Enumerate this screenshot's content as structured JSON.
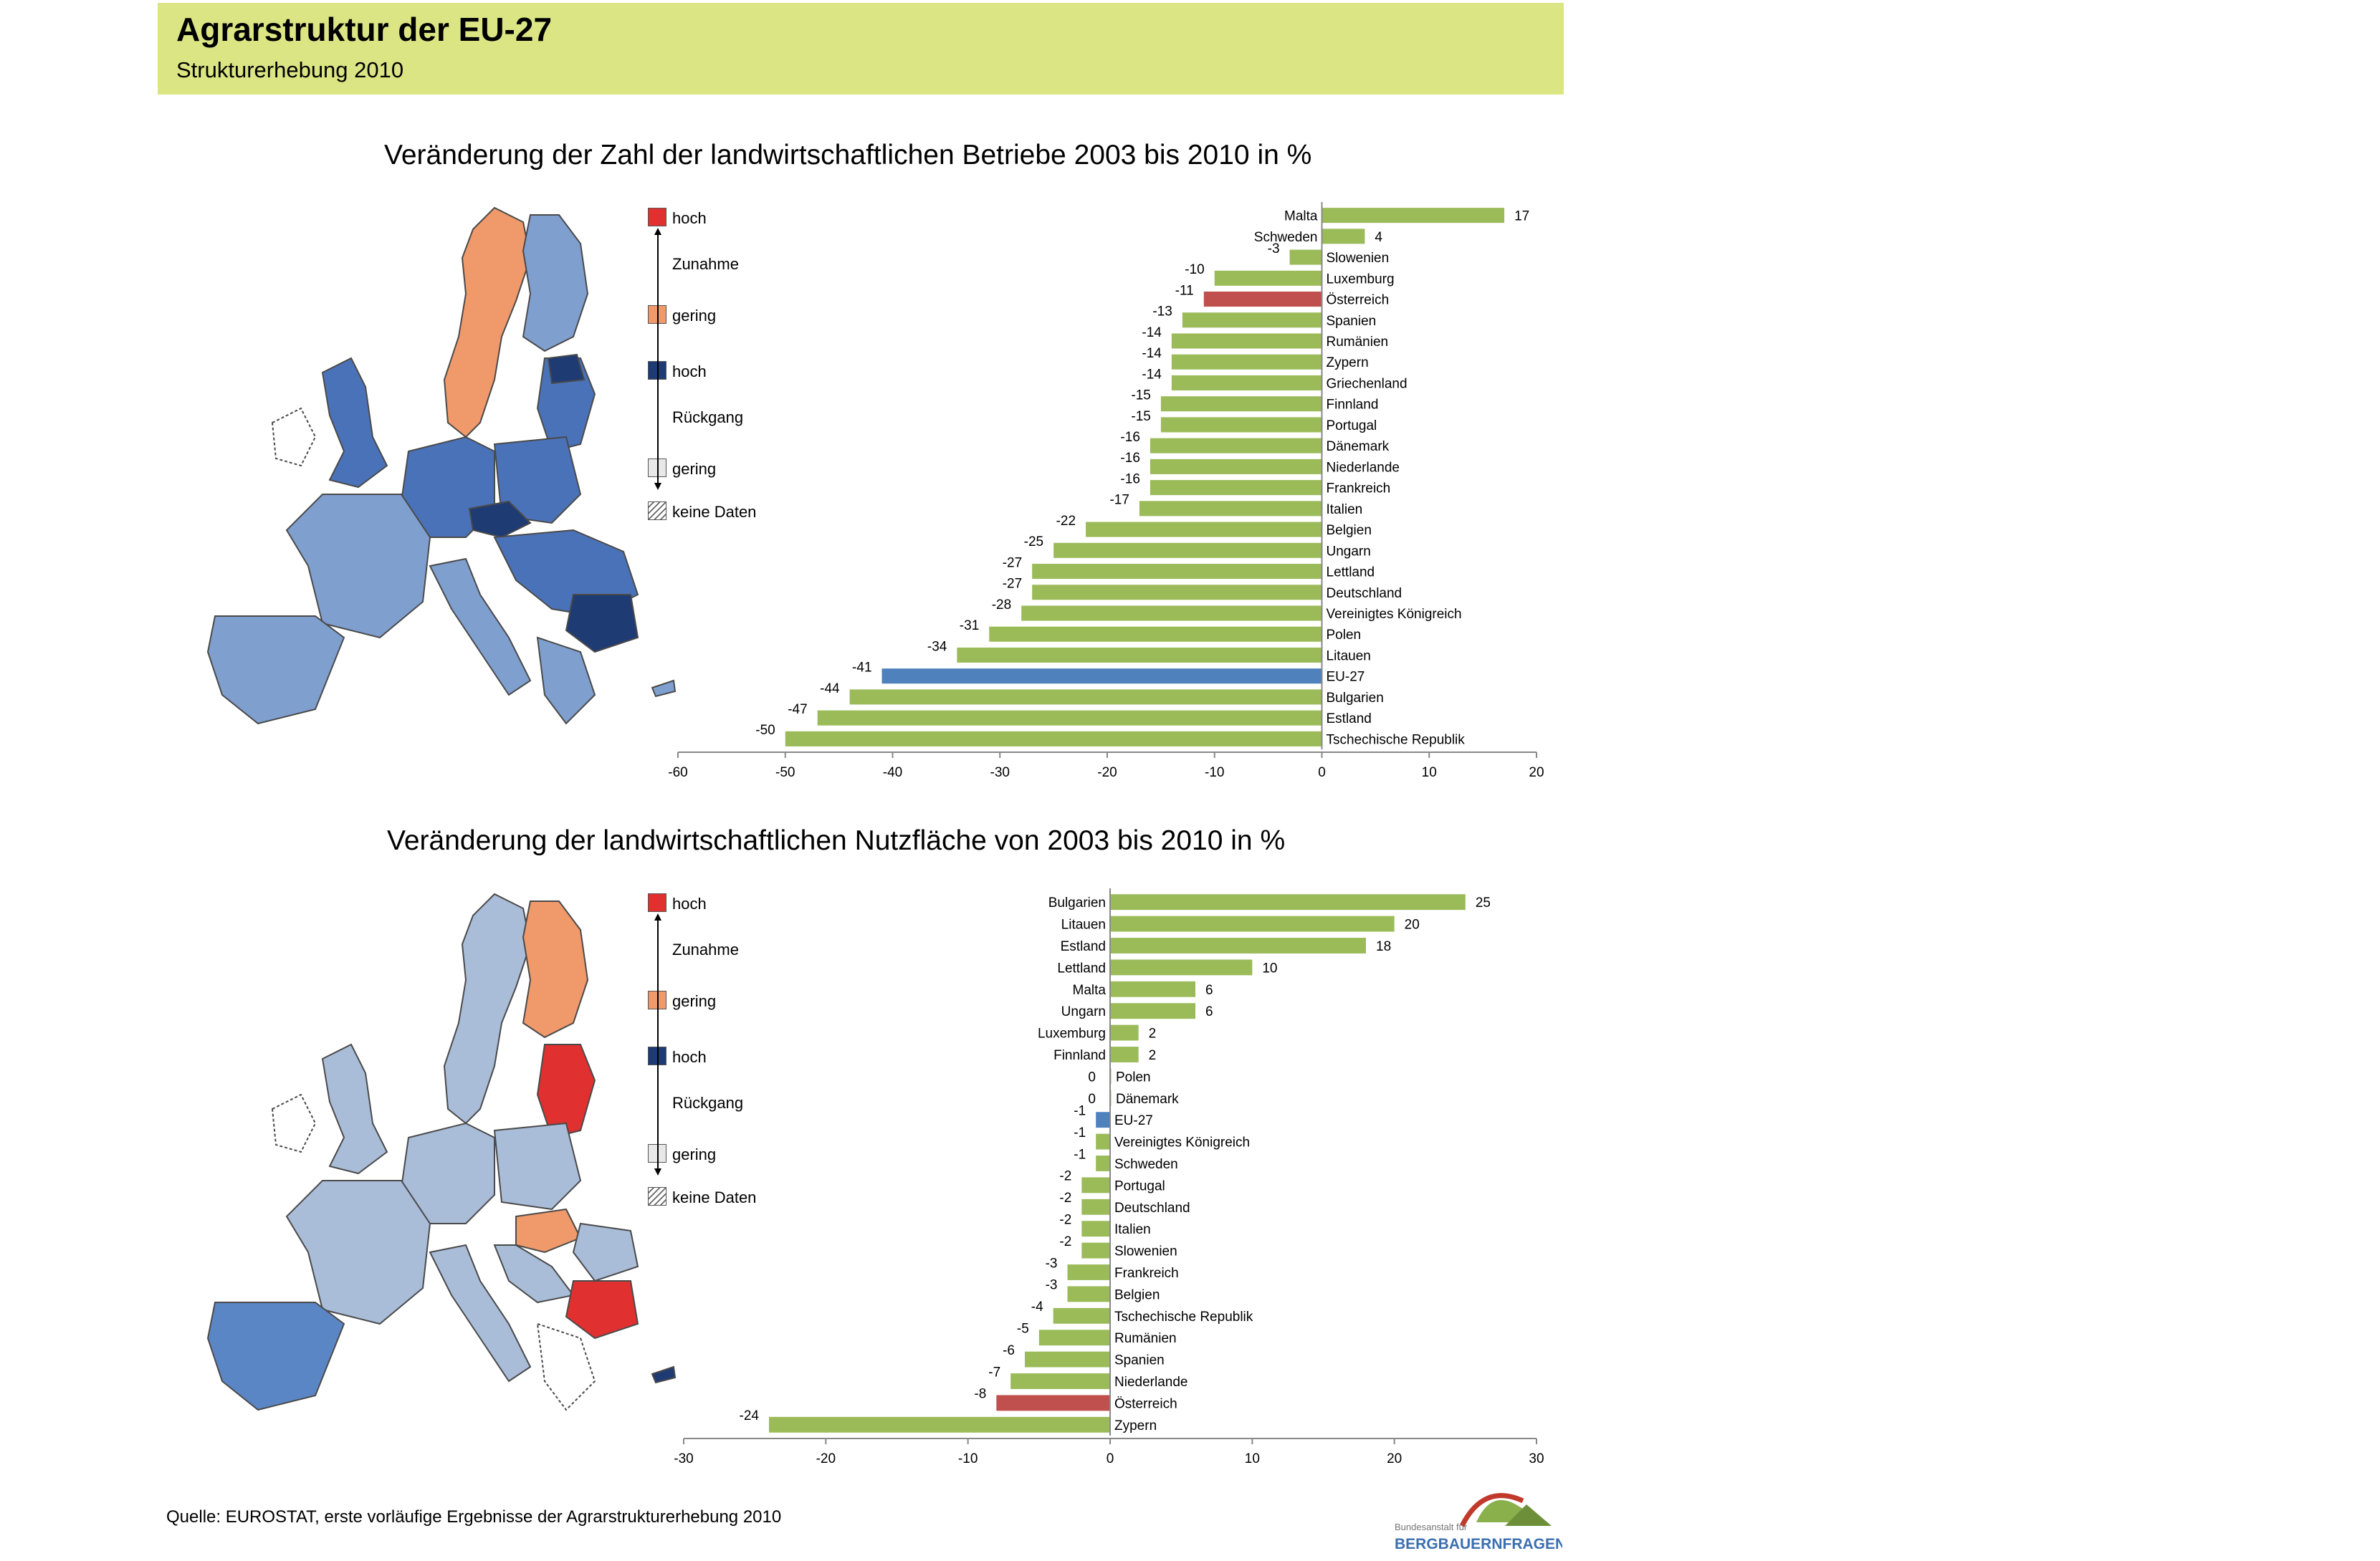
{
  "header": {
    "title": "Agrarstruktur der EU-27",
    "subtitle": "Strukturerhebung 2010"
  },
  "legend": {
    "hoch": "hoch",
    "zunahme": "Zunahme",
    "gering": "gering",
    "rueckgang": "Rückgang",
    "keine_daten": "keine Daten"
  },
  "colors": {
    "bar_green": "#9bbb59",
    "bar_red": "#c0504d",
    "bar_blue": "#4f81bd",
    "header_bg": "#dce584",
    "map_high_increase": "#e03030",
    "map_low_increase": "#f0996a",
    "map_high_decrease": "#1f3b73",
    "map_low_decrease": "#a9bcd8"
  },
  "source": "Quelle: EUROSTAT, erste vorläufige Ergebnisse der Agrarstrukturerhebung 2010",
  "logo": {
    "line1": "Bundesanstalt für",
    "line2": "BERGBAUERNFRAGEN"
  },
  "chart_data": [
    {
      "type": "bar",
      "orientation": "horizontal",
      "title": "Veränderung der Zahl der landwirtschaftlichen Betriebe 2003 bis 2010 in %",
      "xlim": [
        -60,
        20
      ],
      "xticks": [
        -60,
        -50,
        -40,
        -30,
        -20,
        -10,
        0,
        10,
        20
      ],
      "grid": false,
      "categories": [
        "Malta",
        "Schweden",
        "Slowenien",
        "Luxemburg",
        "Österreich",
        "Spanien",
        "Rumänien",
        "Zypern",
        "Griechenland",
        "Finnland",
        "Portugal",
        "Dänemark",
        "Niederlande",
        "Frankreich",
        "Italien",
        "Belgien",
        "Ungarn",
        "Lettland",
        "Deutschland",
        "Vereinigtes Königreich",
        "Polen",
        "Litauen",
        "EU-27",
        "Bulgarien",
        "Estland",
        "Tschechische Republik"
      ],
      "values": [
        17,
        4,
        -3,
        -10,
        -11,
        -13,
        -14,
        -14,
        -14,
        -15,
        -15,
        -16,
        -16,
        -16,
        -17,
        -22,
        -25,
        -27,
        -27,
        -28,
        -31,
        -34,
        -41,
        -44,
        -47,
        -50
      ],
      "highlight": {
        "Österreich": "red",
        "EU-27": "blue"
      }
    },
    {
      "type": "bar",
      "orientation": "horizontal",
      "title": "Veränderung der landwirtschaftlichen Nutzfläche von 2003 bis 2010 in %",
      "xlim": [
        -30,
        30
      ],
      "xticks": [
        -30,
        -20,
        -10,
        0,
        10,
        20,
        30
      ],
      "grid": false,
      "categories": [
        "Bulgarien",
        "Litauen",
        "Estland",
        "Lettland",
        "Malta",
        "Ungarn",
        "Luxemburg",
        "Finnland",
        "Polen",
        "Dänemark",
        "EU-27",
        "Vereinigtes Königreich",
        "Schweden",
        "Portugal",
        "Deutschland",
        "Italien",
        "Slowenien",
        "Frankreich",
        "Belgien",
        "Tschechische Republik",
        "Rumänien",
        "Spanien",
        "Niederlande",
        "Österreich",
        "Zypern"
      ],
      "values": [
        25,
        20,
        18,
        10,
        6,
        6,
        2,
        2,
        0,
        0,
        -1,
        -1,
        -1,
        -2,
        -2,
        -2,
        -2,
        -3,
        -3,
        -4,
        -5,
        -6,
        -7,
        -8,
        -24
      ],
      "highlight": {
        "Österreich": "red",
        "EU-27": "blue"
      }
    }
  ]
}
